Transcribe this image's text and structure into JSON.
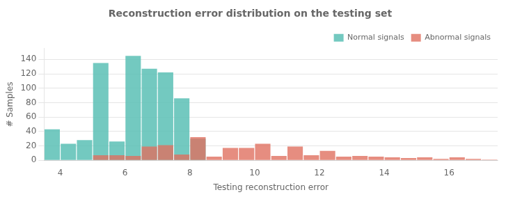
{
  "chart_data": {
    "type": "histogram",
    "title": "Reconstruction error distribution on the testing set",
    "xlabel": "Testing reconstruction error",
    "ylabel": "# Samples",
    "bins": [
      3.5,
      4.0,
      4.5,
      5.0,
      5.5,
      6.0,
      6.5,
      7.0,
      7.5,
      8.0,
      8.5,
      9.0,
      9.5,
      10.0,
      10.5,
      11.0,
      11.5,
      12.0,
      12.5,
      13.0,
      13.5,
      14.0,
      14.5,
      15.0,
      15.5,
      16.0,
      16.5,
      17.0,
      17.5
    ],
    "series": [
      {
        "name": "Normal signals",
        "color": "#5bbfb5",
        "values": [
          43,
          23,
          28,
          135,
          26,
          145,
          127,
          122,
          86,
          30,
          0,
          0,
          0,
          0,
          0,
          0,
          0,
          0,
          0,
          0,
          0,
          0,
          0,
          0,
          0,
          0,
          0,
          0
        ]
      },
      {
        "name": "Abnormal signals",
        "color": "#e07060",
        "values": [
          0,
          0,
          0,
          7,
          7,
          6,
          19,
          21,
          8,
          32,
          5,
          17,
          17,
          23,
          6,
          19,
          7,
          13,
          5,
          6,
          5,
          4,
          3,
          4,
          2,
          4,
          2,
          1
        ]
      }
    ],
    "xlim": [
      3.5,
      17.5
    ],
    "ylim": [
      0,
      155
    ],
    "xticks": [
      4,
      6,
      8,
      10,
      12,
      14,
      16
    ],
    "yticks": [
      0,
      20,
      40,
      60,
      80,
      100,
      120,
      140
    ],
    "grid": "y",
    "legend": "upper right"
  }
}
